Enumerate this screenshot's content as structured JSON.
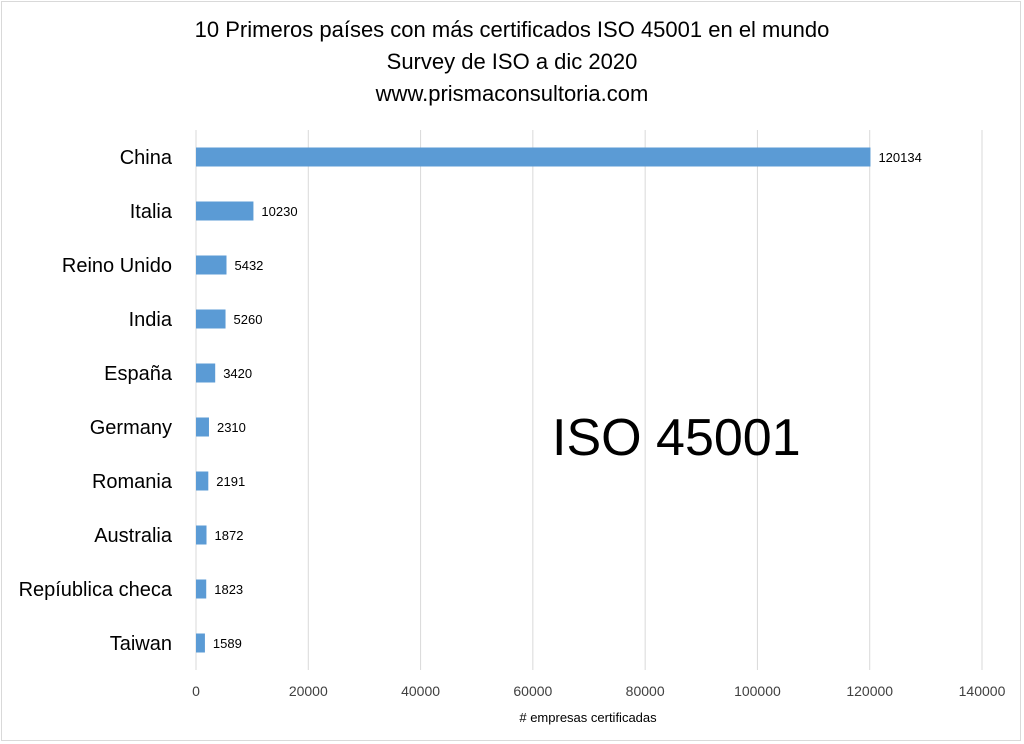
{
  "chart_data": {
    "type": "bar",
    "orientation": "horizontal",
    "title_lines": [
      "10 Primeros países con más certificados ISO 45001 en el mundo",
      "Survey de ISO a dic 2020",
      "www.prismaconsultoria.com"
    ],
    "categories": [
      "China",
      "Italia",
      "Reino Unido",
      "India",
      "España",
      "Germany",
      "Romania",
      "Australia",
      "Repíublica checa",
      "Taiwan"
    ],
    "values": [
      120134,
      10230,
      5432,
      5260,
      3420,
      2310,
      2191,
      1872,
      1823,
      1589
    ],
    "xlabel": "# empresas certificadas",
    "ylabel": "",
    "xlim": [
      0,
      140000
    ],
    "xticks": [
      0,
      20000,
      40000,
      60000,
      80000,
      100000,
      120000,
      140000
    ],
    "grid": true,
    "annotation": "ISO 45001",
    "bar_color": "#5b9bd5",
    "grid_color": "#d9d9d9"
  }
}
